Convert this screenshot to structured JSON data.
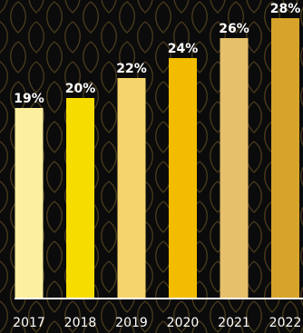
{
  "chart_data": {
    "type": "bar",
    "categories": [
      "2017",
      "2018",
      "2019",
      "2020",
      "2021",
      "2022"
    ],
    "values": [
      19,
      20,
      22,
      24,
      26,
      28
    ],
    "data_labels": [
      "19%",
      "20%",
      "22%",
      "24%",
      "26%",
      "28%"
    ],
    "ylim": [
      0,
      28
    ],
    "grid": false,
    "bar_colors": [
      "#fcef9e",
      "#f7dc00",
      "#f5d46b",
      "#f2bd00",
      "#e7c06c",
      "#d7a32a"
    ],
    "background_color": "#0b0b0b",
    "pattern_color": "#4a3c1c",
    "axis_color": "#ffffff",
    "text_color": "#ffffff"
  }
}
